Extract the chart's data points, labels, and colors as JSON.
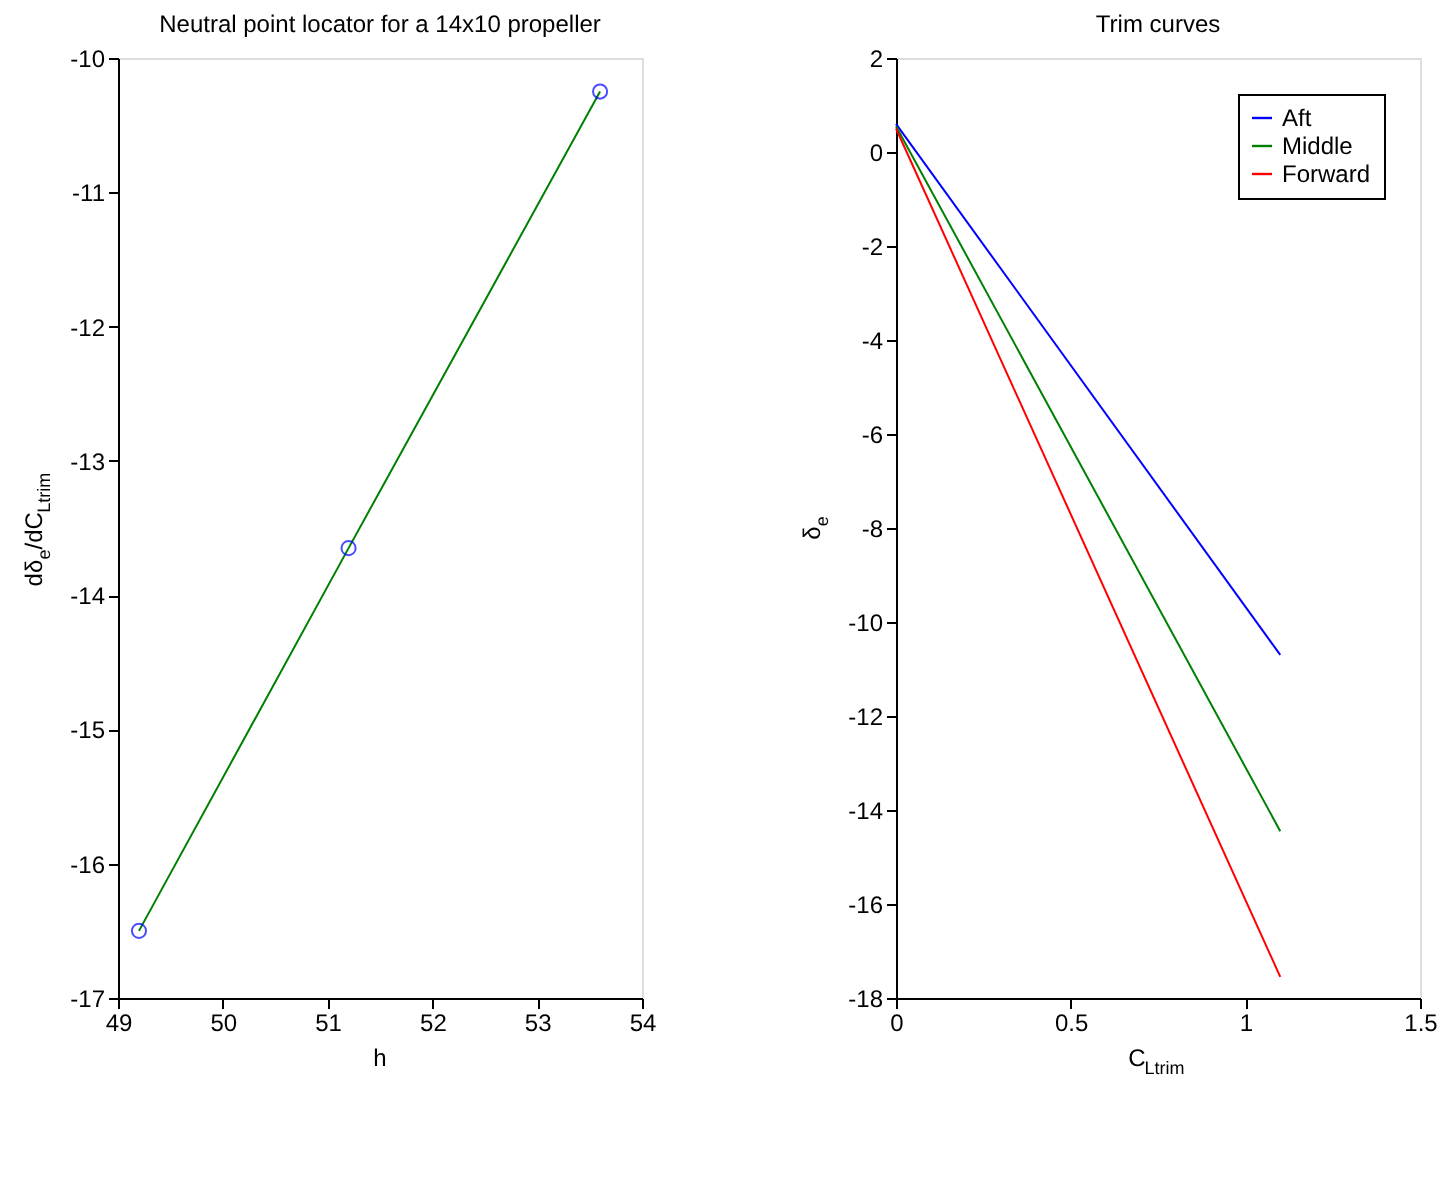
{
  "chart_data": [
    {
      "type": "line",
      "title": "Neutral point locator for a 14x10 propeller",
      "xlabel": "h",
      "ylabel": "dδ$_{e}$/dC$_{Ltrim}$",
      "x": [
        49.2,
        51.2,
        53.6
      ],
      "series": [
        {
          "color": "#008000",
          "values": [
            -16.5,
            -13.65,
            -10.25
          ]
        },
        {
          "type": "scatter",
          "color": "#0000ff",
          "marker": "circle",
          "values": [
            -16.5,
            -13.65,
            -10.25
          ]
        }
      ],
      "xlim": [
        49,
        54
      ],
      "xticks": [
        49,
        50,
        51,
        52,
        53,
        54
      ],
      "ylim": [
        -17,
        -10
      ],
      "yticks": [
        -17,
        -16,
        -15,
        -14,
        -13,
        -12,
        -11,
        -10
      ],
      "grid": false,
      "legend": false
    },
    {
      "type": "line",
      "title": "Trim curves",
      "xlabel": "C$_{Ltrim}$",
      "ylabel": "δ$_{e}$",
      "x": [
        0,
        1.1
      ],
      "series": [
        {
          "name": "Aft",
          "color": "#0000ff",
          "values": [
            0.6,
            -10.7
          ]
        },
        {
          "name": "Middle",
          "color": "#008000",
          "values": [
            0.55,
            -14.45
          ]
        },
        {
          "name": "Forward",
          "color": "#ff0000",
          "values": [
            0.5,
            -17.55
          ]
        }
      ],
      "xlim": [
        0,
        1.5
      ],
      "xticks": [
        0,
        0.5,
        1,
        1.5
      ],
      "ylim": [
        -18,
        2
      ],
      "yticks": [
        -18,
        -16,
        -14,
        -12,
        -10,
        -8,
        -6,
        -4,
        -2,
        0,
        2
      ],
      "grid": false,
      "legend": "top right"
    }
  ]
}
